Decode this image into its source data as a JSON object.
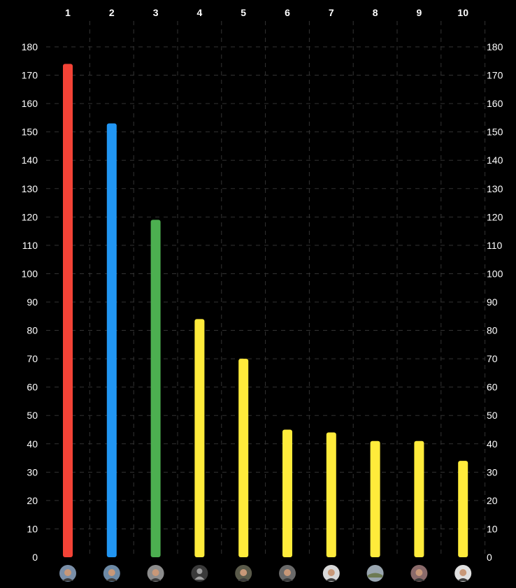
{
  "chart_data": {
    "type": "bar",
    "categories": [
      "1",
      "2",
      "3",
      "4",
      "5",
      "6",
      "7",
      "8",
      "9",
      "10"
    ],
    "values": [
      174,
      153,
      119,
      84,
      70,
      45,
      44,
      41,
      41,
      34
    ],
    "colors": [
      "#f44336",
      "#2196f3",
      "#4caf50",
      "#ffeb3b",
      "#ffeb3b",
      "#ffeb3b",
      "#ffeb3b",
      "#ffeb3b",
      "#ffeb3b",
      "#ffeb3b"
    ],
    "ylim": [
      0,
      180
    ],
    "yticks": [
      0,
      10,
      20,
      30,
      40,
      50,
      60,
      70,
      80,
      90,
      100,
      110,
      120,
      130,
      140,
      150,
      160,
      170,
      180
    ],
    "grid": true,
    "y_axis_both_sides": true,
    "avatars": [
      "person-avatar",
      "person-avatar",
      "person-avatar",
      "default-avatar",
      "person-avatar",
      "person-avatar",
      "person-avatar",
      "landscape-avatar",
      "person-avatar",
      "person-avatar"
    ]
  },
  "theme": {
    "background": "#000000",
    "grid_color": "#333333",
    "text_color": "#ffffff"
  }
}
